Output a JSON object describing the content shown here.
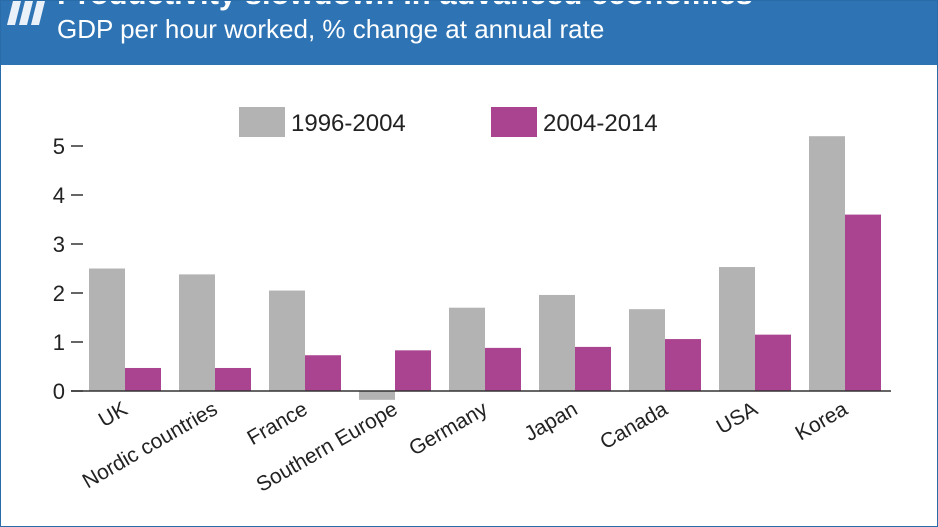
{
  "header": {
    "title": "Productivity slowdown in advanced economies",
    "subtitle": "GDP per hour worked, % change at annual rate"
  },
  "logo": {
    "icon": "oecd-logo-icon"
  },
  "chart_data": {
    "type": "bar",
    "title": "Productivity slowdown in advanced economies",
    "subtitle": "GDP per hour worked, % change at annual rate",
    "xlabel": "",
    "ylabel": "",
    "categories": [
      "UK",
      "Nordic countries",
      "France",
      "Southern Europe",
      "Germany",
      "Japan",
      "Canada",
      "USA",
      "Korea"
    ],
    "series": [
      {
        "name": "1996-2004",
        "color": "#b3b3b3",
        "values": [
          2.5,
          2.38,
          2.05,
          -0.18,
          1.7,
          1.96,
          1.67,
          2.53,
          5.2
        ]
      },
      {
        "name": "2004-2014",
        "color": "#aa4490",
        "values": [
          0.47,
          0.47,
          0.73,
          0.83,
          0.88,
          0.9,
          1.06,
          1.15,
          3.6
        ]
      }
    ],
    "ylim": [
      -0.2,
      5.2
    ],
    "yticks": [
      "0",
      "1",
      "2",
      "3",
      "4",
      "5"
    ],
    "legend_position": "top-center",
    "grid": false
  }
}
